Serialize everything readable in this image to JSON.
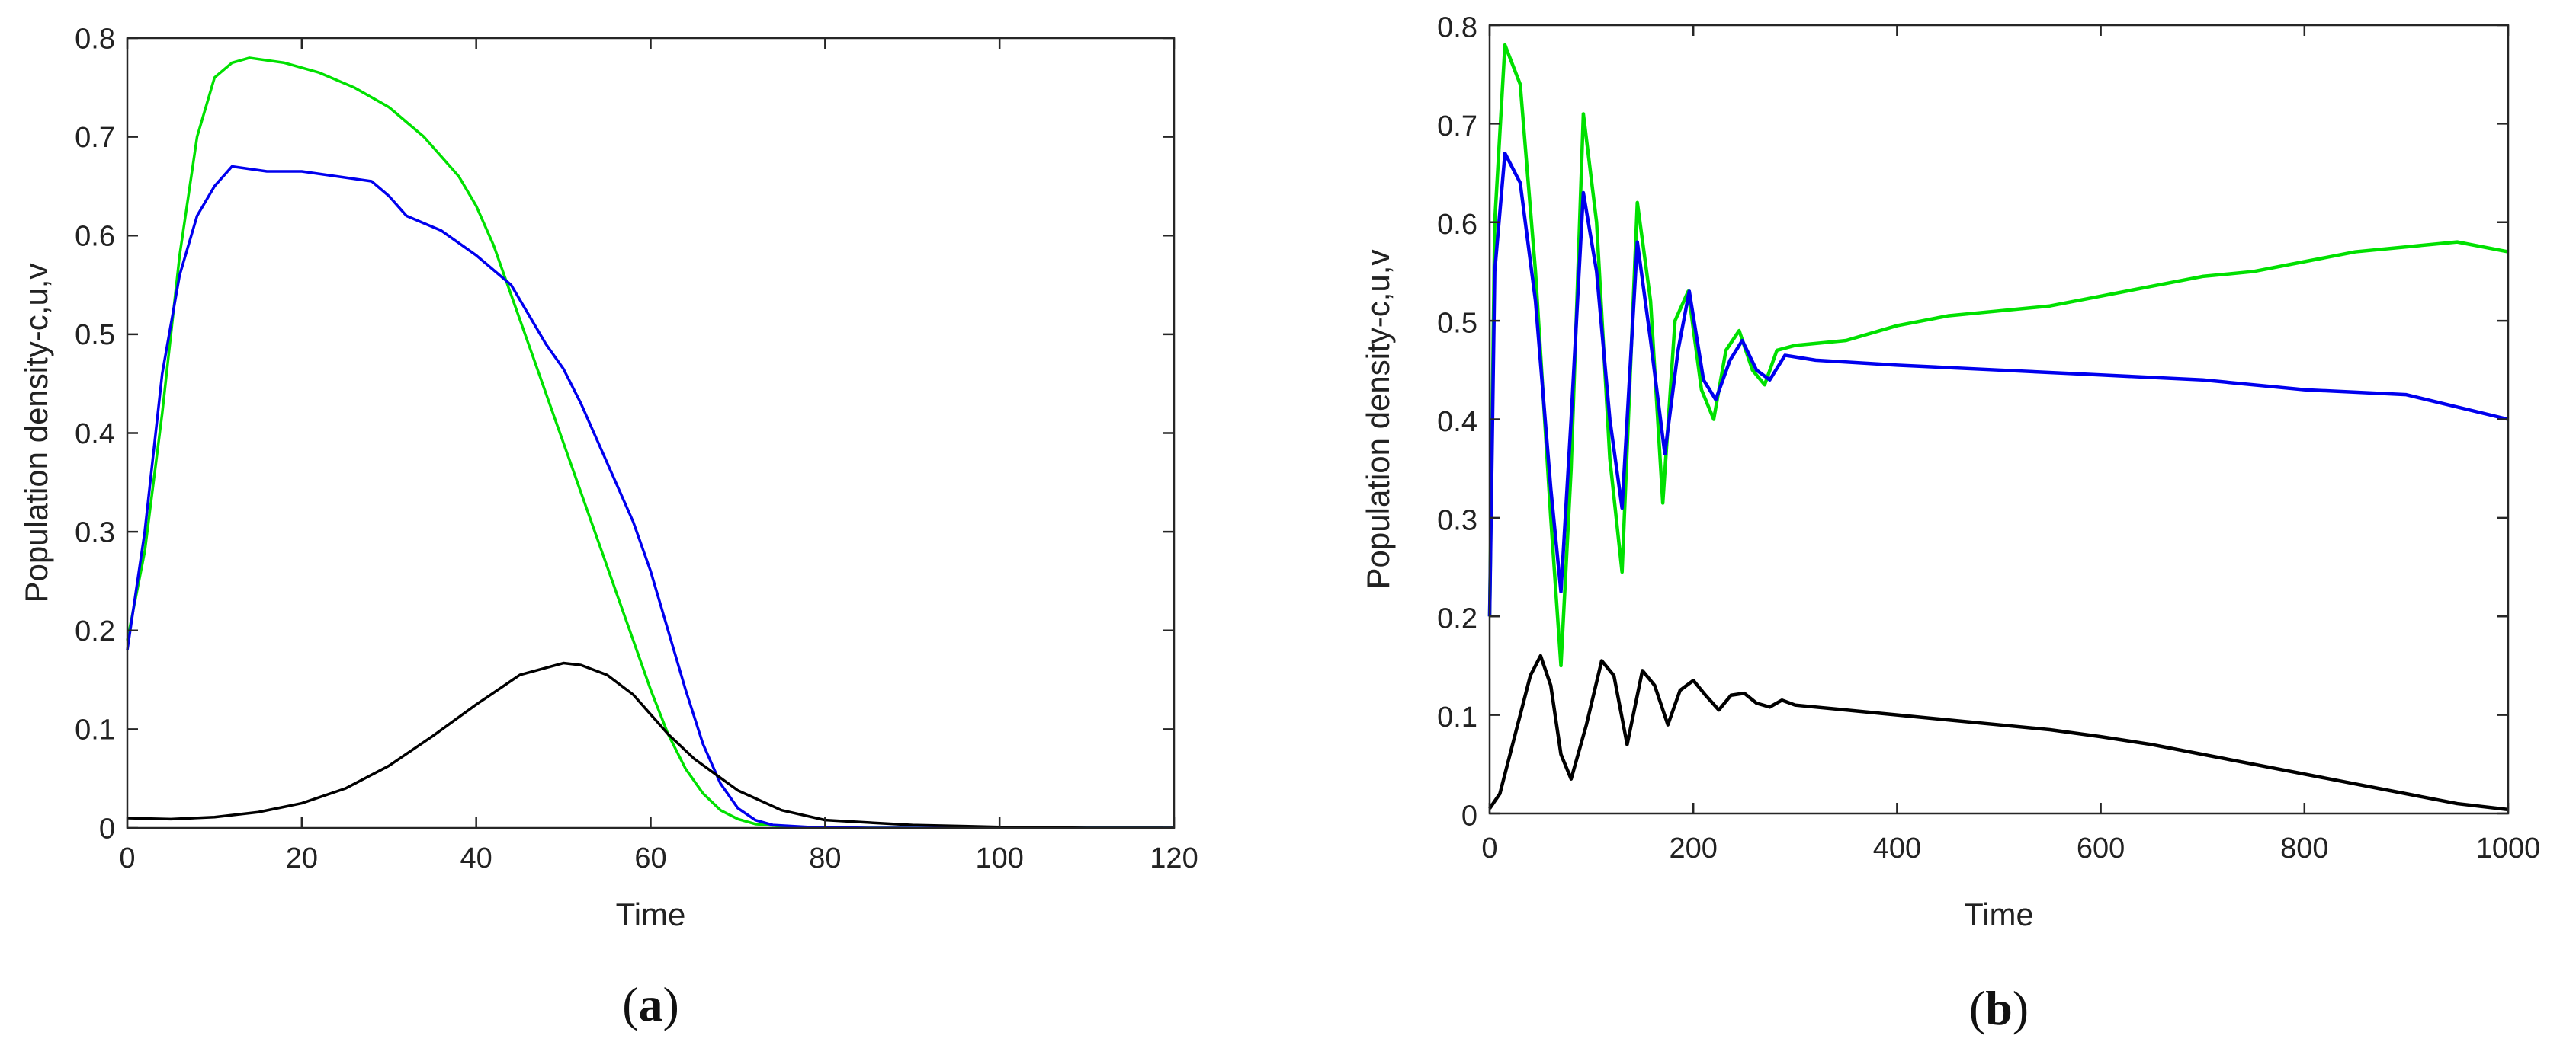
{
  "chart_data": [
    {
      "type": "line",
      "panel_label": "(a)",
      "xlabel": "Time",
      "ylabel": "Population density-c,u,v",
      "xlim": [
        0,
        120
      ],
      "ylim": [
        0,
        0.8
      ],
      "xticks": [
        0,
        20,
        40,
        60,
        80,
        100,
        120
      ],
      "yticks": [
        0,
        0.1,
        0.2,
        0.3,
        0.4,
        0.5,
        0.6,
        0.7,
        0.8
      ],
      "grid": false,
      "series": [
        {
          "color": "#00e000",
          "x": [
            0,
            2,
            4,
            6,
            8,
            10,
            12,
            14,
            18,
            22,
            26,
            30,
            34,
            38,
            40,
            42,
            44,
            46,
            48,
            50,
            52,
            54,
            56,
            58,
            60,
            62,
            64,
            66,
            68,
            70,
            72,
            76,
            80,
            90,
            100,
            110,
            120
          ],
          "y": [
            0.19,
            0.28,
            0.42,
            0.58,
            0.7,
            0.76,
            0.775,
            0.78,
            0.775,
            0.765,
            0.75,
            0.73,
            0.7,
            0.66,
            0.63,
            0.59,
            0.54,
            0.49,
            0.44,
            0.39,
            0.34,
            0.29,
            0.24,
            0.19,
            0.14,
            0.095,
            0.06,
            0.035,
            0.018,
            0.009,
            0.004,
            0.001,
            0.0,
            0.0,
            0.0,
            0.0,
            0.0
          ]
        },
        {
          "color": "#0000ee",
          "x": [
            0,
            2,
            4,
            6,
            8,
            10,
            12,
            16,
            20,
            24,
            28,
            30,
            32,
            36,
            40,
            42,
            44,
            46,
            48,
            50,
            52,
            54,
            56,
            58,
            60,
            62,
            64,
            66,
            68,
            70,
            72,
            74,
            78,
            85,
            100,
            120
          ],
          "y": [
            0.18,
            0.3,
            0.46,
            0.56,
            0.62,
            0.65,
            0.67,
            0.665,
            0.665,
            0.66,
            0.655,
            0.64,
            0.62,
            0.605,
            0.58,
            0.565,
            0.55,
            0.52,
            0.49,
            0.465,
            0.43,
            0.39,
            0.35,
            0.31,
            0.26,
            0.2,
            0.14,
            0.085,
            0.045,
            0.02,
            0.008,
            0.003,
            0.001,
            0.0,
            0.0,
            0.0
          ]
        },
        {
          "color": "#000000",
          "x": [
            0,
            5,
            10,
            15,
            20,
            25,
            30,
            35,
            40,
            45,
            50,
            52,
            55,
            58,
            60,
            62,
            65,
            70,
            75,
            80,
            90,
            100,
            110,
            120
          ],
          "y": [
            0.01,
            0.009,
            0.011,
            0.016,
            0.025,
            0.04,
            0.063,
            0.093,
            0.125,
            0.155,
            0.167,
            0.165,
            0.155,
            0.135,
            0.115,
            0.095,
            0.07,
            0.038,
            0.018,
            0.008,
            0.003,
            0.001,
            0.0,
            0.0
          ]
        }
      ]
    },
    {
      "type": "line",
      "panel_label": "(b)",
      "xlabel": "Time",
      "ylabel": "Population density-c,u,v",
      "xlim": [
        0,
        1000
      ],
      "ylim": [
        0,
        0.8
      ],
      "xticks": [
        0,
        200,
        400,
        600,
        800,
        1000
      ],
      "yticks": [
        0,
        0.1,
        0.2,
        0.3,
        0.4,
        0.5,
        0.6,
        0.7,
        0.8
      ],
      "grid": false,
      "series": [
        {
          "color": "#00e000",
          "x": [
            0,
            5,
            15,
            30,
            45,
            60,
            70,
            80,
            92,
            105,
            118,
            130,
            145,
            158,
            170,
            182,
            195,
            208,
            220,
            232,
            245,
            258,
            270,
            282,
            300,
            350,
            400,
            450,
            500,
            550,
            600,
            650,
            700,
            750,
            800,
            850,
            900,
            950,
            1000
          ],
          "y": [
            0.2,
            0.6,
            0.78,
            0.74,
            0.55,
            0.3,
            0.15,
            0.35,
            0.71,
            0.6,
            0.36,
            0.245,
            0.62,
            0.52,
            0.315,
            0.5,
            0.53,
            0.43,
            0.4,
            0.47,
            0.49,
            0.45,
            0.435,
            0.47,
            0.475,
            0.48,
            0.495,
            0.505,
            0.51,
            0.515,
            0.525,
            0.535,
            0.545,
            0.55,
            0.56,
            0.57,
            0.575,
            0.58,
            0.57
          ]
        },
        {
          "color": "#0000ee",
          "x": [
            0,
            5,
            15,
            30,
            45,
            60,
            70,
            80,
            92,
            105,
            118,
            130,
            145,
            158,
            172,
            185,
            196,
            210,
            222,
            236,
            248,
            262,
            275,
            290,
            320,
            400,
            500,
            600,
            700,
            800,
            900,
            1000
          ],
          "y": [
            0.2,
            0.55,
            0.67,
            0.64,
            0.52,
            0.33,
            0.225,
            0.4,
            0.63,
            0.55,
            0.4,
            0.31,
            0.58,
            0.48,
            0.365,
            0.47,
            0.53,
            0.44,
            0.42,
            0.46,
            0.48,
            0.45,
            0.44,
            0.465,
            0.46,
            0.455,
            0.45,
            0.445,
            0.44,
            0.43,
            0.425,
            0.4
          ]
        },
        {
          "color": "#000000",
          "x": [
            0,
            10,
            25,
            40,
            50,
            60,
            70,
            80,
            95,
            110,
            122,
            135,
            150,
            162,
            175,
            187,
            200,
            212,
            225,
            237,
            250,
            262,
            275,
            287,
            300,
            350,
            400,
            450,
            500,
            550,
            600,
            650,
            700,
            750,
            800,
            850,
            900,
            950,
            1000
          ],
          "y": [
            0.005,
            0.02,
            0.08,
            0.14,
            0.16,
            0.13,
            0.06,
            0.035,
            0.09,
            0.155,
            0.14,
            0.07,
            0.145,
            0.13,
            0.09,
            0.125,
            0.135,
            0.12,
            0.105,
            0.12,
            0.122,
            0.112,
            0.108,
            0.115,
            0.11,
            0.105,
            0.1,
            0.095,
            0.09,
            0.085,
            0.078,
            0.07,
            0.06,
            0.05,
            0.04,
            0.03,
            0.02,
            0.01,
            0.004
          ]
        }
      ]
    }
  ]
}
